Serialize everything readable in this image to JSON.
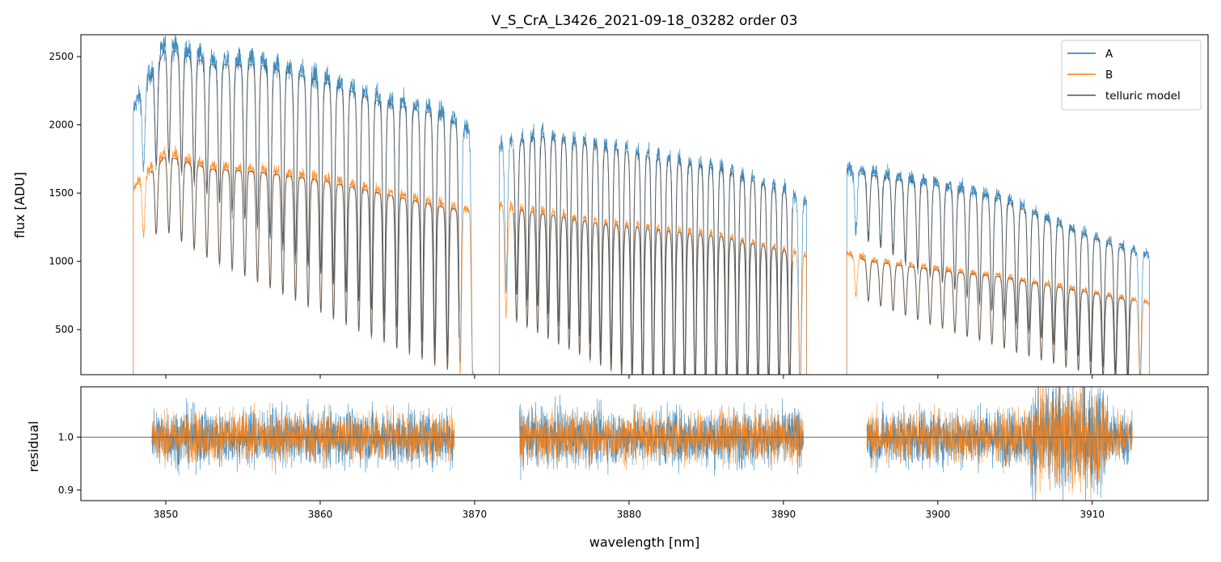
{
  "chart_data": [
    {
      "type": "line",
      "panel": "top",
      "title": "V_S_CrA_L3426_2021-09-18_03282  order 03",
      "xlabel": "",
      "ylabel": "flux [ADU]",
      "xlim": [
        3844.5,
        3917.5
      ],
      "ylim": [
        170,
        2660
      ],
      "yticks": [
        500,
        1000,
        1500,
        2000,
        2500
      ],
      "grid": false,
      "legend_position": "top-right",
      "segments": [
        [
          3847.9,
          3869.9
        ],
        [
          3871.6,
          3891.5
        ],
        [
          3894.1,
          3913.7
        ]
      ],
      "series": [
        {
          "name": "A",
          "color": "#1f77b4",
          "envelope": {
            "x": [
              3848.0,
              3850.0,
              3853.0,
              3856.0,
              3860.0,
              3864.0,
              3868.0,
              3869.9,
              3871.6,
              3874.0,
              3878.0,
              3882.0,
              3886.0,
              3890.0,
              3891.5,
              3894.1,
              3896.0,
              3900.0,
              3904.0,
              3908.0,
              3911.0,
              3913.7
            ],
            "y": [
              2150,
              2600,
              2480,
              2480,
              2360,
              2200,
              2100,
              1950,
              1850,
              1950,
              1880,
              1780,
              1700,
              1540,
              1440,
              1680,
              1650,
              1580,
              1480,
              1280,
              1150,
              1050
            ]
          }
        },
        {
          "name": "B",
          "color": "#ff7f0e",
          "envelope": {
            "x": [
              3848.0,
              3850.0,
              3853.0,
              3856.0,
              3860.0,
              3864.0,
              3868.0,
              3869.9,
              3871.6,
              3874.0,
              3878.0,
              3882.0,
              3886.0,
              3890.0,
              3891.5,
              3894.1,
              3896.0,
              3900.0,
              3904.0,
              3908.0,
              3911.0,
              3913.7
            ],
            "y": [
              1550,
              1800,
              1700,
              1680,
              1620,
              1520,
              1420,
              1380,
              1420,
              1380,
              1300,
              1250,
              1200,
              1100,
              1050,
              1060,
              1010,
              950,
              900,
              820,
              760,
              700
            ]
          }
        },
        {
          "name": "telluric model",
          "color": "#555555",
          "range": [
            3849.0,
            3912.7
          ]
        }
      ],
      "legend": [
        "A",
        "B",
        "telluric model"
      ]
    },
    {
      "type": "line",
      "panel": "bottom",
      "title": "",
      "xlabel": "wavelength [nm]",
      "ylabel": "residual",
      "xlim": [
        3844.5,
        3917.5
      ],
      "ylim": [
        0.88,
        1.095
      ],
      "yticks": [
        0.9,
        1.0
      ],
      "xticks": [
        3850,
        3860,
        3870,
        3880,
        3890,
        3900,
        3910
      ],
      "reference_line": 1.0,
      "segments": [
        [
          3849.1,
          3868.7
        ],
        [
          3872.9,
          3891.3
        ],
        [
          3895.4,
          3912.6
        ]
      ],
      "series": [
        {
          "name": "A",
          "color": "#1f77b4"
        },
        {
          "name": "B",
          "color": "#ff7f0e"
        }
      ]
    }
  ]
}
